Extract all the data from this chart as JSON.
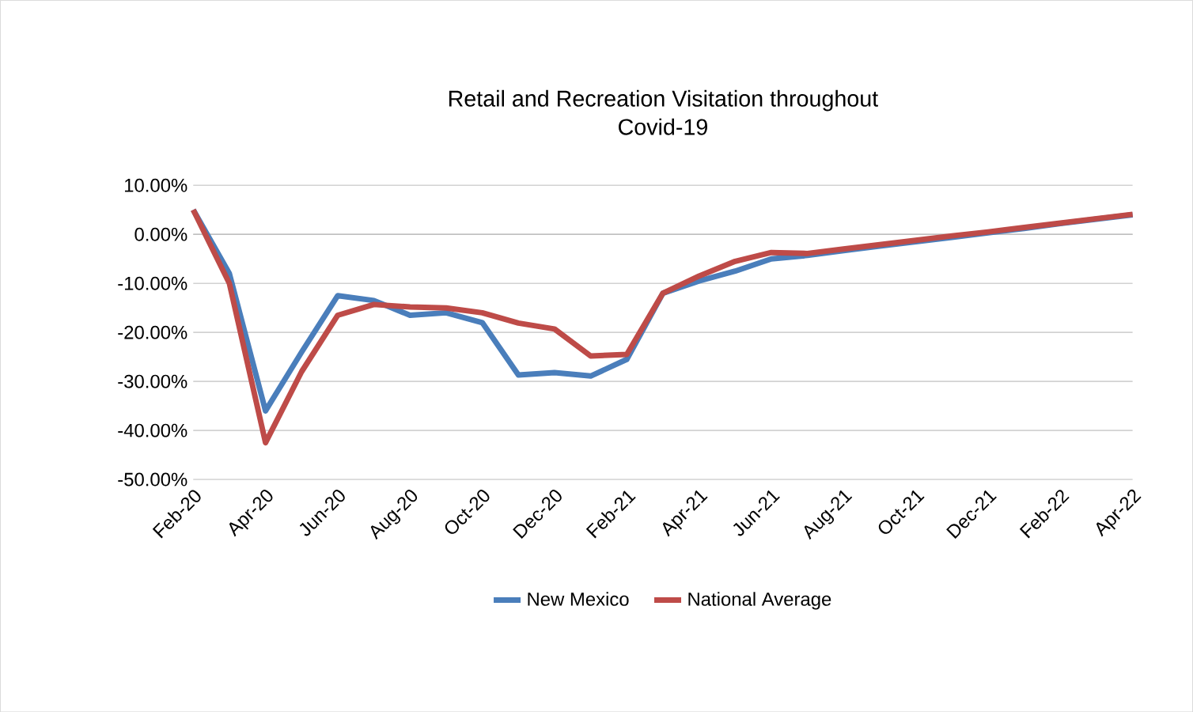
{
  "chart_data": {
    "type": "line",
    "title": "Retail and Recreation Visitation throughout Covid-19",
    "categories": [
      "Feb-20",
      null,
      "Apr-20",
      null,
      "Jun-20",
      null,
      "Aug-20",
      null,
      "Oct-20",
      null,
      "Dec-20",
      null,
      "Feb-21",
      null,
      "Apr-21",
      null,
      "Jun-21",
      null,
      "Aug-21",
      null,
      "Oct-21",
      null,
      "Dec-21",
      null,
      "Feb-22",
      null,
      "Apr-22"
    ],
    "series": [
      {
        "name": "New Mexico",
        "color": "#4a7ebb",
        "values": [
          5,
          -8,
          -36,
          -24,
          -12.5,
          -13.5,
          -16.5,
          -16,
          -18,
          -28.7,
          -28.2,
          -28.9,
          -25.5,
          -12,
          -9.5,
          -7.5,
          -5,
          -4.3,
          -3.3,
          -2.4,
          -1.5,
          -0.6,
          0.3,
          1.2,
          2.2,
          3.1,
          4
        ]
      },
      {
        "name": "National Average",
        "color": "#be4b48",
        "values": [
          5,
          -10,
          -42.5,
          -28,
          -16.5,
          -14.3,
          -14.8,
          -15,
          -16,
          -18.1,
          -19.3,
          -24.8,
          -24.5,
          -12,
          -8.5,
          -5.5,
          -3.7,
          -3.9,
          -3,
          -2.1,
          -1.2,
          -0.3,
          0.5,
          1.4,
          2.3,
          3.2,
          4.1
        ]
      }
    ],
    "ylim": [
      -50,
      10
    ],
    "yticks": [
      {
        "value": -50,
        "label": "-50.00%"
      },
      {
        "value": -40,
        "label": "-40.00%"
      },
      {
        "value": -30,
        "label": "-30.00%"
      },
      {
        "value": -20,
        "label": "-20.00%"
      },
      {
        "value": -10,
        "label": "-10.00%"
      },
      {
        "value": 0,
        "label": "0.00%"
      },
      {
        "value": 10,
        "label": "10.00%"
      }
    ],
    "grid": "y",
    "legend": "bottom",
    "marker": "none",
    "line_style": "solid"
  }
}
